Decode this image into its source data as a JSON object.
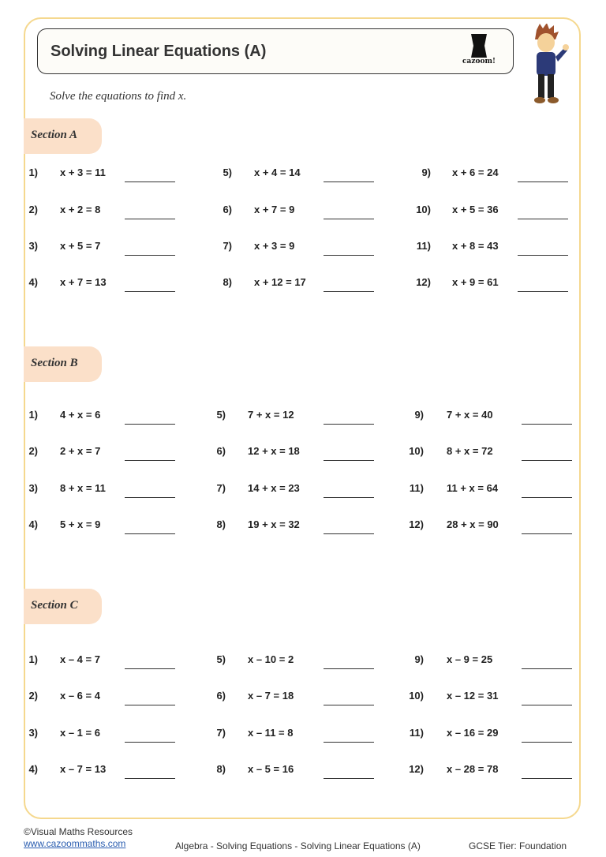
{
  "header": {
    "title": "Solving Linear Equations (A)",
    "logo_text": "cazoom!"
  },
  "instruction": "Solve the equations to find x.",
  "sections": [
    {
      "label": "Section A",
      "questions": [
        [
          "1)",
          "x + 3 = 11"
        ],
        [
          "2)",
          "x + 2 = 8"
        ],
        [
          "3)",
          "x + 5 = 7"
        ],
        [
          "4)",
          "x + 7 = 13"
        ],
        [
          "5)",
          "x + 4 = 14"
        ],
        [
          "6)",
          "x + 7 = 9"
        ],
        [
          "7)",
          "x + 3 = 9"
        ],
        [
          "8)",
          "x + 12 = 17"
        ],
        [
          "9)",
          "x + 6 = 24"
        ],
        [
          "10)",
          "x + 5 = 36"
        ],
        [
          "11)",
          "x + 8 = 43"
        ],
        [
          "12)",
          "x + 9 = 61"
        ]
      ]
    },
    {
      "label": "Section B",
      "questions": [
        [
          "1)",
          "4 + x = 6"
        ],
        [
          "2)",
          "2 + x = 7"
        ],
        [
          "3)",
          "8 + x = 11"
        ],
        [
          "4)",
          "5 + x = 9"
        ],
        [
          "5)",
          "7 + x = 12"
        ],
        [
          "6)",
          "12 + x = 18"
        ],
        [
          "7)",
          "14 + x = 23"
        ],
        [
          "8)",
          "19 + x = 32"
        ],
        [
          "9)",
          "7 + x = 40"
        ],
        [
          "10)",
          "8 + x = 72"
        ],
        [
          "11)",
          "11 + x = 64"
        ],
        [
          "12)",
          "28 + x = 90"
        ]
      ]
    },
    {
      "label": "Section C",
      "questions": [
        [
          "1)",
          "x – 4 = 7"
        ],
        [
          "2)",
          "x – 6 = 4"
        ],
        [
          "3)",
          "x – 1 = 6"
        ],
        [
          "4)",
          "x – 7 = 13"
        ],
        [
          "5)",
          "x – 10 = 2"
        ],
        [
          "6)",
          "x – 7 = 18"
        ],
        [
          "7)",
          "x – 11 = 8"
        ],
        [
          "8)",
          "x – 5 = 16"
        ],
        [
          "9)",
          "x – 9 = 25"
        ],
        [
          "10)",
          "x – 12 = 31"
        ],
        [
          "11)",
          "x – 16 = 29"
        ],
        [
          "12)",
          "x – 28 = 78"
        ]
      ]
    }
  ],
  "footer": {
    "copyright": "©Visual Maths Resources",
    "website": "www.cazoommaths.com",
    "topic": "Algebra - Solving Equations - Solving Linear Equations (A)",
    "tier": "GCSE Tier: Foundation"
  },
  "colors": {
    "frame": "#f5d88e",
    "section_tab": "#fbe0c9"
  }
}
